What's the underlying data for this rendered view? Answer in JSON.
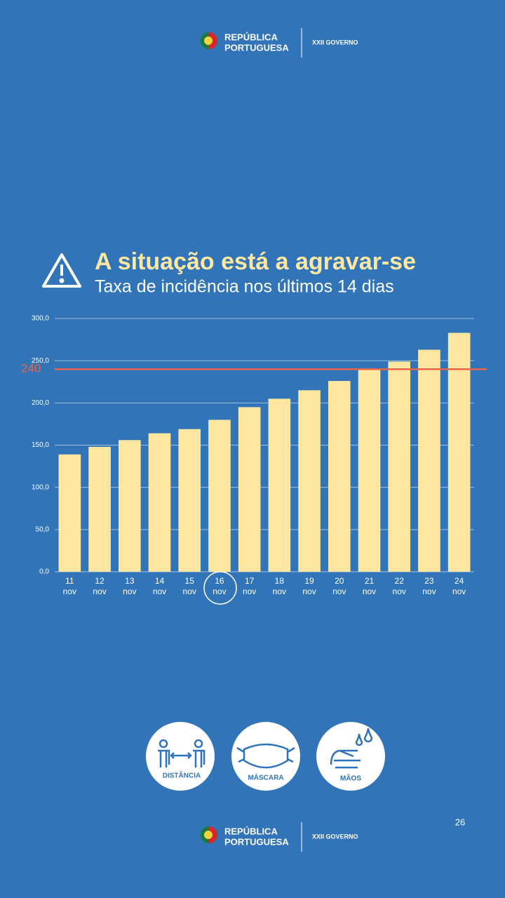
{
  "header": {
    "brand_line1": "REPÚBLICA",
    "brand_line2": "PORTUGUESA",
    "government": "XXII GOVERNO"
  },
  "chart_data": {
    "type": "bar",
    "title": "A situação está a agravar-se",
    "subtitle": "Taxa de incidência nos últimos 14 dias",
    "categories": [
      "11 nov",
      "12 nov",
      "13 nov",
      "14 nov",
      "15 nov",
      "16 nov",
      "17 nov",
      "18 nov",
      "19 nov",
      "20 nov",
      "21 nov",
      "22 nov",
      "23 nov",
      "24 nov"
    ],
    "values": [
      139,
      148,
      156,
      164,
      169,
      180,
      195,
      205,
      215,
      226,
      240,
      249,
      263,
      283
    ],
    "color": "#fde7a0",
    "ylim": [
      0,
      300
    ],
    "yticks": [
      {
        "value": 0,
        "label": "0,0"
      },
      {
        "value": 50,
        "label": "50,0"
      },
      {
        "value": 100,
        "label": "100,0"
      },
      {
        "value": 150,
        "label": "150,0"
      },
      {
        "value": 200,
        "label": "200,0"
      },
      {
        "value": 250,
        "label": "250,0"
      },
      {
        "value": 300,
        "label": "300,0"
      }
    ],
    "grid": true,
    "reference_line": {
      "value": 240,
      "color": "#e8654a"
    }
  },
  "icons": [
    "DISTÂNCIA",
    "MÁSCARA",
    "MÃOS"
  ],
  "page_number": "26"
}
